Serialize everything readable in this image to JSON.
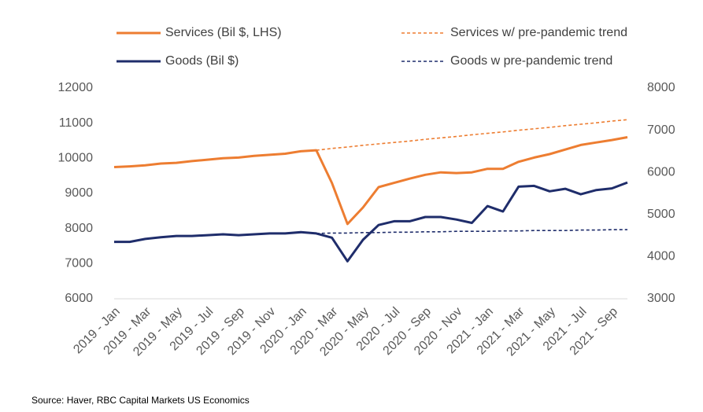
{
  "chart_data": {
    "type": "line",
    "categories": [
      "2019 - Jan",
      null,
      "2019 - Mar",
      null,
      "2019 - May",
      null,
      "2019 - Jul",
      null,
      "2019 - Sep",
      null,
      "2019 - Nov",
      null,
      "2020 - Jan",
      null,
      "2020 - Mar",
      null,
      "2020 - May",
      null,
      "2020 - Jul",
      null,
      "2020 - Sep",
      null,
      "2020 - Nov",
      null,
      "2021 - Jan",
      null,
      "2021 - Mar",
      null,
      "2021 - May",
      null,
      "2021 - Jul",
      null,
      "2021 - Sep",
      null
    ],
    "series": [
      {
        "name": "Services (Bil $, LHS)",
        "color": "#ed7d31",
        "dashed": false,
        "axis": "y",
        "values": [
          9750,
          9770,
          9800,
          9850,
          9870,
          9920,
          9960,
          10000,
          10020,
          10070,
          10100,
          10130,
          10200,
          10230,
          9300,
          8130,
          8600,
          9180,
          9300,
          9420,
          9530,
          9600,
          9580,
          9600,
          9700,
          9700,
          9900,
          10020,
          10120,
          10250,
          10380,
          10450,
          10520,
          10600
        ]
      },
      {
        "name": "Services w/ pre-pandemic trend",
        "color": "#ed7d31",
        "dashed": true,
        "axis": "y",
        "values": [
          null,
          null,
          null,
          null,
          null,
          null,
          null,
          null,
          null,
          null,
          null,
          null,
          null,
          10230,
          10280,
          10320,
          10370,
          10410,
          10450,
          10490,
          10540,
          10580,
          10620,
          10670,
          10710,
          10750,
          10800,
          10840,
          10880,
          10930,
          10970,
          11010,
          11060,
          11100
        ]
      },
      {
        "name": "Goods (Bil $)",
        "color": "#1f2d6b",
        "dashed": false,
        "axis": "y2",
        "values": [
          4350,
          4350,
          4420,
          4460,
          4490,
          4490,
          4510,
          4530,
          4510,
          4530,
          4550,
          4550,
          4580,
          4550,
          4450,
          3890,
          4400,
          4750,
          4840,
          4840,
          4940,
          4940,
          4880,
          4800,
          5200,
          5070,
          5660,
          5680,
          5550,
          5610,
          5480,
          5580,
          5620,
          5760
        ]
      },
      {
        "name": "Goods w pre-pandemic trend",
        "color": "#1f2d6b",
        "dashed": true,
        "axis": "y2",
        "values": [
          null,
          null,
          null,
          null,
          null,
          null,
          null,
          null,
          null,
          null,
          null,
          null,
          null,
          4550,
          4560,
          4560,
          4570,
          4570,
          4580,
          4580,
          4590,
          4590,
          4600,
          4600,
          4600,
          4610,
          4610,
          4620,
          4620,
          4620,
          4630,
          4630,
          4640,
          4640
        ]
      }
    ],
    "ylim": [
      6000,
      12000
    ],
    "yticks": [
      6000,
      7000,
      8000,
      9000,
      10000,
      11000,
      12000
    ],
    "y2lim": [
      3000,
      8000
    ],
    "y2ticks": [
      3000,
      4000,
      5000,
      6000,
      7000,
      8000
    ],
    "source": "Source: Haver, RBC Capital Markets US Economics"
  }
}
